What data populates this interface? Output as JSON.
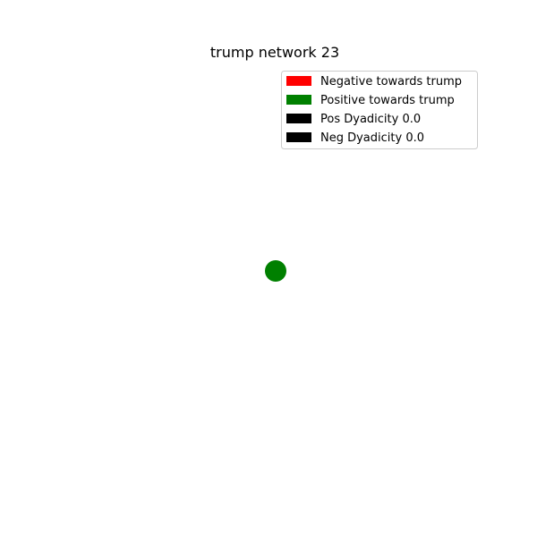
{
  "figure": {
    "title": "trump network 23"
  },
  "legend": {
    "placement": "top-right",
    "items": [
      {
        "label": "Negative towards trump",
        "color": "#ff0000"
      },
      {
        "label": "Positive towards trump",
        "color": "#008000"
      },
      {
        "label": "Pos Dyadicity 0.0",
        "color": "#000000"
      },
      {
        "label": "Neg Dyadicity 0.0",
        "color": "#000000"
      }
    ]
  },
  "network": {
    "nodes": [
      {
        "color": "#008000"
      }
    ],
    "edges": []
  }
}
